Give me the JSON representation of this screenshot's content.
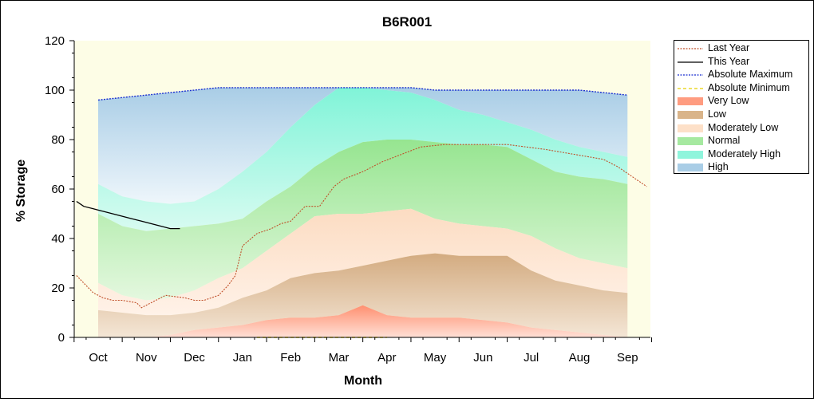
{
  "chart_data": {
    "type": "area",
    "title": "B6R001",
    "xlabel": "Month",
    "ylabel": "% Storage",
    "ylim": [
      0,
      120
    ],
    "yticks": [
      0,
      20,
      40,
      60,
      80,
      100,
      120
    ],
    "months": [
      "Oct",
      "Nov",
      "Dec",
      "Jan",
      "Feb",
      "Mar",
      "Apr",
      "May",
      "Jun",
      "Jul",
      "Aug",
      "Sep"
    ],
    "grid": false,
    "legend_position": "right",
    "bands": {
      "x": [
        0,
        0.5,
        1,
        1.5,
        2,
        2.5,
        3,
        3.5,
        4,
        4.5,
        5,
        5.5,
        6,
        6.5,
        7,
        7.5,
        8,
        8.5,
        9,
        9.5,
        10,
        10.5,
        11
      ],
      "absolute_minimum": [
        0,
        0,
        0,
        0,
        0,
        0,
        0,
        0,
        0,
        0,
        0,
        0,
        0,
        0,
        0,
        0,
        0,
        0,
        0,
        0,
        0,
        0,
        0
      ],
      "very_low_upper": [
        0,
        0,
        0,
        1,
        3,
        4,
        5,
        7,
        8,
        8,
        9,
        13,
        9,
        8,
        8,
        8,
        7,
        6,
        4,
        3,
        2,
        1,
        0
      ],
      "low_upper": [
        11,
        10,
        9,
        9,
        10,
        12,
        16,
        19,
        24,
        26,
        27,
        29,
        31,
        33,
        34,
        33,
        33,
        33,
        27,
        23,
        21,
        19,
        18
      ],
      "moderately_low_upper": [
        22,
        17,
        15,
        16,
        19,
        24,
        28,
        35,
        42,
        49,
        50,
        50,
        51,
        52,
        48,
        46,
        45,
        44,
        41,
        36,
        32,
        30,
        28
      ],
      "normal_upper": [
        50,
        45,
        43,
        44,
        45,
        46,
        48,
        55,
        61,
        69,
        75,
        79,
        80,
        80,
        79,
        78,
        78,
        77,
        72,
        67,
        65,
        64,
        62
      ],
      "moderately_high_upper": [
        62,
        57,
        55,
        54,
        55,
        60,
        67,
        75,
        85,
        94,
        101,
        101,
        100,
        99,
        96,
        92,
        90,
        87,
        84,
        80,
        77,
        75,
        73
      ],
      "absolute_maximum": [
        96,
        97,
        98,
        99,
        100,
        101,
        101,
        101,
        101,
        101,
        101,
        101,
        101,
        101,
        100,
        100,
        100,
        100,
        100,
        100,
        100,
        99,
        98
      ]
    },
    "series": [
      {
        "name": "Last Year",
        "x": [
          -0.45,
          -0.3,
          -0.1,
          0.1,
          0.3,
          0.5,
          0.8,
          0.9,
          1.1,
          1.4,
          1.6,
          1.8,
          2.0,
          2.2,
          2.5,
          2.7,
          2.85,
          3.0,
          3.3,
          3.6,
          3.8,
          4.0,
          4.3,
          4.6,
          4.9,
          5.1,
          5.5,
          5.9,
          6.3,
          6.7,
          7.2,
          7.6,
          8.0,
          8.5,
          8.9,
          9.3,
          9.6,
          9.9,
          10.2,
          10.5,
          10.8,
          11.1,
          11.4
        ],
        "y": [
          25,
          22,
          18,
          16,
          15,
          15,
          14,
          12,
          14,
          17,
          16.5,
          16,
          15,
          15,
          17,
          21,
          25,
          37,
          42,
          44,
          46,
          47,
          53,
          53,
          61,
          64,
          67,
          71,
          74,
          77,
          78,
          78,
          78,
          78,
          77,
          76,
          75,
          74,
          73,
          72,
          69,
          65,
          61
        ]
      },
      {
        "name": "This Year",
        "x": [
          -0.45,
          -0.3,
          -0.1,
          0.1,
          0.3,
          0.5,
          0.7,
          0.9,
          1.1,
          1.3,
          1.5,
          1.7
        ],
        "y": [
          55,
          53,
          52,
          51,
          50,
          49,
          48,
          47,
          46,
          45,
          44,
          44
        ]
      }
    ],
    "legend": [
      "Last Year",
      "This Year",
      "Absolute Maximum",
      "Absolute Minimum",
      "Very Low",
      "Low",
      "Moderately Low",
      "Normal",
      "Moderately High",
      "High"
    ],
    "colors": {
      "plot_background": "#fdfde6",
      "last_year": "#c0502a",
      "this_year": "#000000",
      "absolute_maximum": "#1a2fd0",
      "absolute_minimum": "#e8d000",
      "very_low": "#ff9c80",
      "low": "#d9b48a",
      "moderately_low": "#fde0c8",
      "normal": "#a6e9a0",
      "moderately_high": "#8ff5dc",
      "high": "#a9cde6"
    }
  }
}
